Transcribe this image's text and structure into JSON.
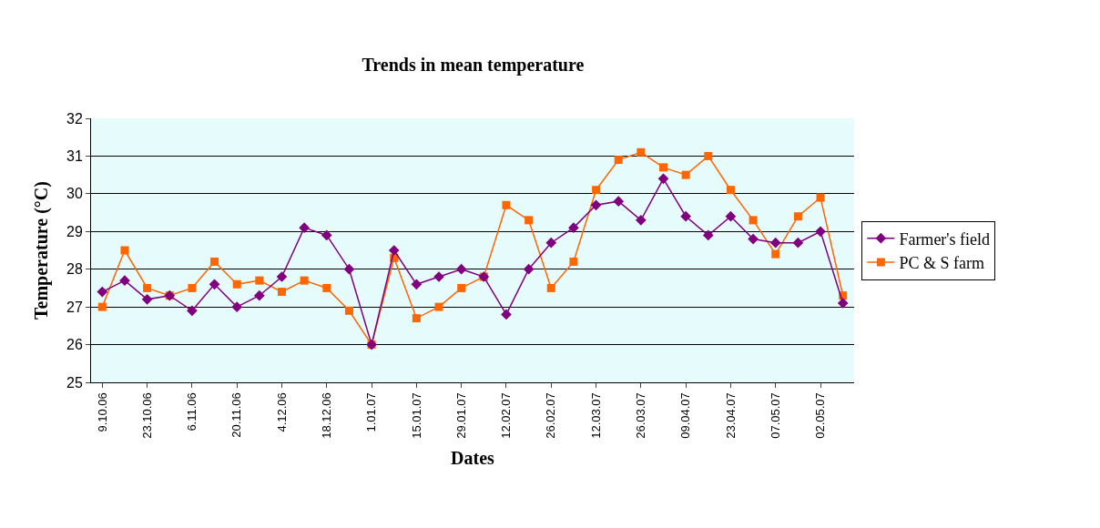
{
  "chart_data": {
    "type": "line",
    "title": "Trends in mean temperature",
    "xlabel": "Dates",
    "ylabel": "Temperature (°C)",
    "categories": [
      "9.10.06",
      null,
      "23.10.06",
      null,
      "6.11.06",
      null,
      "20.11.06",
      null,
      "4.12.06",
      null,
      "18.12.06",
      null,
      "1.01.07",
      null,
      "15.01.07",
      null,
      "29.01.07",
      null,
      "12.02.07",
      null,
      "26.02.07",
      null,
      "12.03.07",
      null,
      "26.03.07",
      null,
      "09.04.07",
      null,
      "23.04.07",
      null,
      "07.05.07",
      null,
      "02.05.07",
      null
    ],
    "series": [
      {
        "name": "Farmer's field",
        "color": "#800080",
        "marker": "diamond",
        "values": [
          27.4,
          27.7,
          27.2,
          27.3,
          26.9,
          27.6,
          27.0,
          27.3,
          27.8,
          29.1,
          28.9,
          28.0,
          26.0,
          28.5,
          27.6,
          27.8,
          28.0,
          27.8,
          26.8,
          28.0,
          28.7,
          29.1,
          29.7,
          29.8,
          29.3,
          30.4,
          29.4,
          28.9,
          29.4,
          28.8,
          28.7,
          28.7,
          29.0,
          27.1
        ]
      },
      {
        "name": "PC & S farm",
        "color": "#ff6600",
        "marker": "square",
        "values": [
          27.0,
          28.5,
          27.5,
          27.3,
          27.5,
          28.2,
          27.6,
          27.7,
          27.4,
          27.7,
          27.5,
          26.9,
          26.0,
          28.3,
          26.7,
          27.0,
          27.5,
          27.8,
          29.7,
          29.3,
          27.5,
          28.2,
          30.1,
          30.9,
          31.1,
          30.7,
          30.5,
          31.0,
          30.1,
          29.3,
          28.4,
          29.4,
          29.9,
          27.3
        ]
      }
    ],
    "ylim": [
      25,
      32
    ],
    "yticks": [
      25,
      26,
      27,
      28,
      29,
      30,
      31,
      32
    ],
    "grid": "y",
    "legend": "right",
    "line_style": "solid"
  }
}
